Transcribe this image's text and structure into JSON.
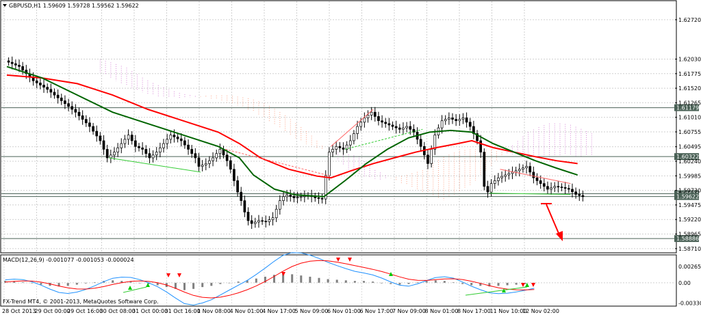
{
  "main_header": {
    "symbol_info": "GBPUSD,H1  1.59609 1.59728 1.59562 1.59622"
  },
  "macd_header": {
    "text": "MACD(12,26,9) -0.001077 -0.001053 -0.000024"
  },
  "copyright": "FX-Trend MT4, © 2001-2013, MetaQuotes Software Corp.",
  "colors": {
    "ma_fast": "#006400",
    "ma_slow": "#ff0000",
    "macd_main": "#1e90ff",
    "macd_signal": "#ff0000",
    "cloud_up": "#ff8c69",
    "cloud_down": "#cc66cc",
    "level_tag_bg": "#4a6156",
    "arrow_down": "#ff0000",
    "arrow_up": "#00cc00"
  },
  "chart_data": {
    "type": "line",
    "price_axis": {
      "ticks": [
        "1.62720",
        "1.62030",
        "1.61775",
        "1.61520",
        "1.61265",
        "1.61010",
        "1.60755",
        "1.60495",
        "1.60240",
        "1.59985",
        "1.59730",
        "1.59475",
        "1.59220",
        "1.58965",
        "1.58710"
      ],
      "ylim": [
        1.5866,
        1.6285
      ]
    },
    "level_lines": [
      {
        "label": "1.61179",
        "value": 1.61179
      },
      {
        "label": "1.60322",
        "value": 1.60322
      },
      {
        "label": "1.59671",
        "value": 1.59671
      },
      {
        "label": "1.59622",
        "value": 1.59622
      },
      {
        "label": "1.58886",
        "value": 1.58886
      }
    ],
    "time_axis": [
      "28 Oct 2013",
      "29 Oct 00:00",
      "29 Oct 16:00",
      "30 Oct 08:00",
      "31 Oct 00:00",
      "31 Oct 16:00",
      "1 Nov 08:00",
      "4 Nov 01:00",
      "4 Nov 17:00",
      "5 Nov 09:00",
      "6 Nov 01:00",
      "6 Nov 17:00",
      "7 Nov 09:00",
      "8 Nov 01:00",
      "8 Nov 17:00",
      "11 Nov 10:00",
      "12 Nov 02:00"
    ],
    "price_path": [
      [
        0,
        1.62
      ],
      [
        4,
        1.619
      ],
      [
        8,
        1.6165
      ],
      [
        12,
        1.615
      ],
      [
        16,
        1.613
      ],
      [
        20,
        1.611
      ],
      [
        24,
        1.6085
      ],
      [
        27,
        1.606
      ],
      [
        29,
        1.603
      ],
      [
        31,
        1.604
      ],
      [
        33,
        1.6055
      ],
      [
        35,
        1.607
      ],
      [
        37,
        1.605
      ],
      [
        39,
        1.6045
      ],
      [
        41,
        1.603
      ],
      [
        43,
        1.604
      ],
      [
        45,
        1.6055
      ],
      [
        47,
        1.607
      ],
      [
        50,
        1.606
      ],
      [
        52,
        1.6045
      ],
      [
        54,
        1.603
      ],
      [
        55,
        1.6015
      ],
      [
        57,
        1.602
      ],
      [
        59,
        1.603
      ],
      [
        61,
        1.6045
      ],
      [
        63,
        1.6025
      ],
      [
        64,
        1.601
      ],
      [
        65,
        1.599
      ],
      [
        66,
        1.597
      ],
      [
        67,
        1.5955
      ],
      [
        68,
        1.5935
      ],
      [
        69,
        1.592
      ],
      [
        70,
        1.5915
      ],
      [
        72,
        1.592
      ],
      [
        74,
        1.5918
      ],
      [
        76,
        1.5925
      ],
      [
        77,
        1.594
      ],
      [
        78,
        1.5955
      ],
      [
        79,
        1.5962
      ],
      [
        80,
        1.5965
      ],
      [
        82,
        1.596
      ],
      [
        84,
        1.5962
      ],
      [
        86,
        1.5964
      ],
      [
        88,
        1.596
      ],
      [
        90,
        1.5958
      ],
      [
        92,
        1.604
      ],
      [
        94,
        1.605
      ],
      [
        96,
        1.6045
      ],
      [
        98,
        1.606
      ],
      [
        100,
        1.6085
      ],
      [
        102,
        1.61
      ],
      [
        104,
        1.611
      ],
      [
        106,
        1.6095
      ],
      [
        108,
        1.609
      ],
      [
        110,
        1.6085
      ],
      [
        112,
        1.608
      ],
      [
        114,
        1.6085
      ],
      [
        116,
        1.6075
      ],
      [
        118,
        1.605
      ],
      [
        120,
        1.602
      ],
      [
        122,
        1.607
      ],
      [
        124,
        1.6095
      ],
      [
        126,
        1.61
      ],
      [
        128,
        1.6095
      ],
      [
        130,
        1.61
      ],
      [
        132,
        1.6085
      ],
      [
        134,
        1.606
      ],
      [
        135,
        1.604
      ],
      [
        136,
        1.598
      ],
      [
        137,
        1.597
      ],
      [
        138,
        1.5985
      ],
      [
        140,
        1.5995
      ],
      [
        142,
        1.6
      ],
      [
        144,
        1.6005
      ],
      [
        146,
        1.601
      ],
      [
        148,
        1.6015
      ],
      [
        150,
        1.5995
      ],
      [
        152,
        1.5985
      ],
      [
        154,
        1.5975
      ],
      [
        156,
        1.598
      ],
      [
        158,
        1.5978
      ],
      [
        160,
        1.5975
      ],
      [
        162,
        1.5966
      ],
      [
        164,
        1.5962
      ]
    ],
    "ma_fast": [
      [
        0,
        1.619
      ],
      [
        10,
        1.617
      ],
      [
        20,
        1.614
      ],
      [
        30,
        1.611
      ],
      [
        40,
        1.609
      ],
      [
        50,
        1.607
      ],
      [
        60,
        1.605
      ],
      [
        66,
        1.603
      ],
      [
        70,
        1.6
      ],
      [
        76,
        1.5975
      ],
      [
        82,
        1.5965
      ],
      [
        90,
        1.5962
      ],
      [
        96,
        1.599
      ],
      [
        102,
        1.602
      ],
      [
        108,
        1.6045
      ],
      [
        114,
        1.6065
      ],
      [
        120,
        1.6075
      ],
      [
        126,
        1.6078
      ],
      [
        132,
        1.6075
      ],
      [
        138,
        1.6055
      ],
      [
        144,
        1.604
      ],
      [
        150,
        1.6025
      ],
      [
        156,
        1.6012
      ],
      [
        162,
        1.6
      ]
    ],
    "ma_slow": [
      [
        0,
        1.6175
      ],
      [
        10,
        1.617
      ],
      [
        20,
        1.616
      ],
      [
        30,
        1.614
      ],
      [
        40,
        1.6115
      ],
      [
        50,
        1.6095
      ],
      [
        60,
        1.6075
      ],
      [
        66,
        1.6055
      ],
      [
        72,
        1.603
      ],
      [
        80,
        1.601
      ],
      [
        88,
        1.5998
      ],
      [
        92,
        1.5995
      ],
      [
        98,
        1.6008
      ],
      [
        104,
        1.602
      ],
      [
        110,
        1.603
      ],
      [
        116,
        1.604
      ],
      [
        122,
        1.6048
      ],
      [
        128,
        1.6055
      ],
      [
        132,
        1.606
      ],
      [
        138,
        1.6048
      ],
      [
        144,
        1.604
      ],
      [
        150,
        1.6032
      ],
      [
        156,
        1.6025
      ],
      [
        162,
        1.602
      ]
    ],
    "macd_axis": {
      "ticks": [
        "0.002657",
        "0.00",
        "-0.003301"
      ],
      "ylim": [
        -0.0036,
        0.0029
      ]
    },
    "macd_histogram": [
      0.0003,
      0.0002,
      0.0001,
      -0.0001,
      -0.0003,
      -0.0005,
      -0.0006,
      -0.0005,
      -0.0003,
      -0.0001,
      0.0001,
      0.0003,
      0.0004,
      0.0003,
      0.0002,
      0.0,
      -0.0002,
      -0.0004,
      -0.0007,
      -0.001,
      -0.0012,
      -0.001,
      -0.0007,
      -0.0005,
      -0.0002,
      0.0,
      0.0002,
      0.0004,
      0.0007,
      0.001,
      0.0013,
      0.0015,
      0.0014,
      0.0012,
      0.001,
      0.0008,
      0.0006,
      0.0005,
      0.0004,
      0.0003,
      0.0003,
      0.0002,
      0.0,
      -0.0002,
      -0.0003,
      -0.0002,
      0.0001,
      0.0003,
      0.0004,
      0.0003,
      0.0001,
      -0.0002,
      -0.0004,
      -0.0005,
      -0.0006,
      -0.0005,
      -0.0004,
      -0.0003,
      -0.0002,
      -0.0001
    ]
  }
}
